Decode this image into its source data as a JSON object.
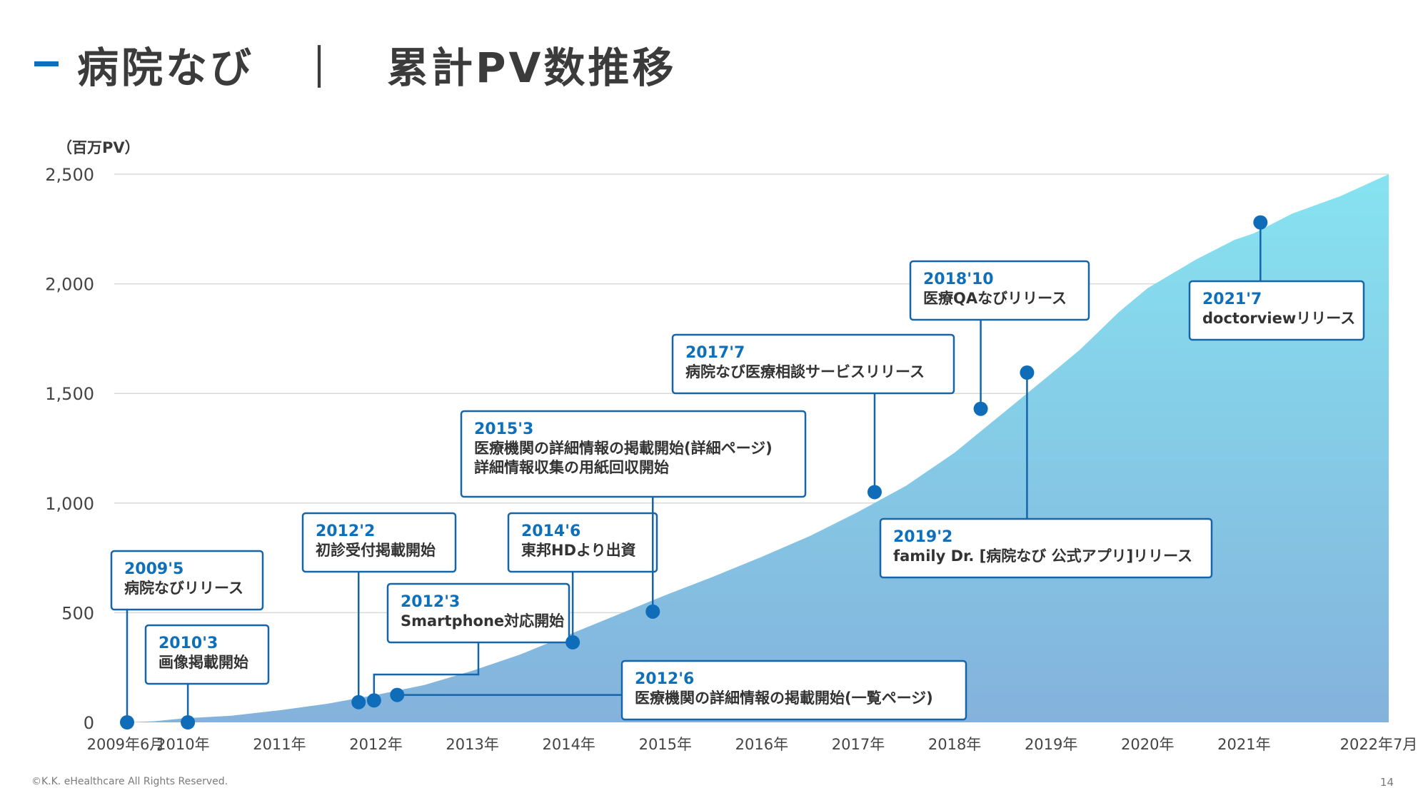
{
  "header": {
    "title": "病院なび　｜　累計PV数推移"
  },
  "footer": {
    "copyright": "©K.K. eHealthcare All Rights Reserved.",
    "page_number": "14"
  },
  "colors": {
    "accent": "#0e6fba",
    "area_top": "#86e3f0",
    "area_bottom": "#84b2dc",
    "grid": "#d9d9d9",
    "box_border": "#1565a8",
    "marker": "#0f6cb8"
  },
  "chart_data": {
    "type": "area",
    "ylabel": "（百万PV）",
    "ylim": [
      0,
      2500
    ],
    "yticks": [
      0,
      500,
      1000,
      1500,
      2000,
      2500
    ],
    "ytick_labels": [
      "0",
      "500",
      "1,000",
      "1,500",
      "2,000",
      "2,500"
    ],
    "xlim": [
      2009.42,
      2022.5
    ],
    "xticks": [
      2009.42,
      2010,
      2011,
      2012,
      2013,
      2014,
      2015,
      2016,
      2017,
      2018,
      2019,
      2020,
      2021,
      2022.5
    ],
    "xtick_labels": [
      "2009年6月",
      "2010年",
      "2011年",
      "2012年",
      "2013年",
      "2014年",
      "2015年",
      "2016年",
      "2017年",
      "2018年",
      "2019年",
      "2020年",
      "2021年",
      "2022年7月"
    ],
    "grid": true,
    "series": [
      {
        "x": [
          2009.42,
          2009.7,
          2010.0,
          2010.5,
          2011.0,
          2011.5,
          2012.0,
          2012.5,
          2013.0,
          2013.5,
          2014.0,
          2014.5,
          2015.0,
          2015.5,
          2016.0,
          2016.5,
          2017.0,
          2017.5,
          2018.0,
          2018.5,
          2019.0,
          2019.3,
          2019.7,
          2020.0,
          2020.5,
          2020.9,
          2021.1,
          2021.5,
          2022.0,
          2022.5
        ],
        "y": [
          0,
          5,
          18,
          30,
          55,
          85,
          125,
          170,
          235,
          310,
          400,
          490,
          580,
          665,
          755,
          850,
          960,
          1080,
          1230,
          1410,
          1590,
          1700,
          1870,
          1980,
          2110,
          2200,
          2230,
          2320,
          2400,
          2500
        ]
      }
    ],
    "annotations": [
      {
        "date": "2009'5",
        "text": [
          "病院なびリリース"
        ],
        "x": 2009.42,
        "y": 0
      },
      {
        "date": "2010'3",
        "text": [
          "画像掲載開始"
        ],
        "x": 2010.05,
        "y": 0
      },
      {
        "date": "2012'2",
        "text": [
          "初診受付掲載開始"
        ],
        "x": 2011.82,
        "y": 92
      },
      {
        "date": "2012'3",
        "text": [
          "Smartphone対応開始"
        ],
        "x": 2011.98,
        "y": 100
      },
      {
        "date": "2012'6",
        "text": [
          "医療機関の詳細情報の掲載開始(一覧ページ)"
        ],
        "x": 2012.22,
        "y": 125
      },
      {
        "date": "2014'6",
        "text": [
          "東邦HDより出資"
        ],
        "x": 2014.04,
        "y": 365
      },
      {
        "date": "2015'3",
        "text": [
          "医療機関の詳細情報の掲載開始(詳細ページ)",
          "詳細情報収集の用紙回収開始"
        ],
        "x": 2014.87,
        "y": 505
      },
      {
        "date": "2017'7",
        "text": [
          "病院なび医療相談サービスリリース"
        ],
        "x": 2017.17,
        "y": 1050
      },
      {
        "date": "2018'10",
        "text": [
          "医療QAなびリリース"
        ],
        "x": 2018.27,
        "y": 1430
      },
      {
        "date": "2019'2",
        "text": [
          "family Dr. [病院なび 公式アプリ]リリース"
        ],
        "x": 2018.75,
        "y": 1595
      },
      {
        "date": "2021'7",
        "text": [
          "doctorviewリリース"
        ],
        "x": 2021.17,
        "y": 2280
      }
    ]
  }
}
